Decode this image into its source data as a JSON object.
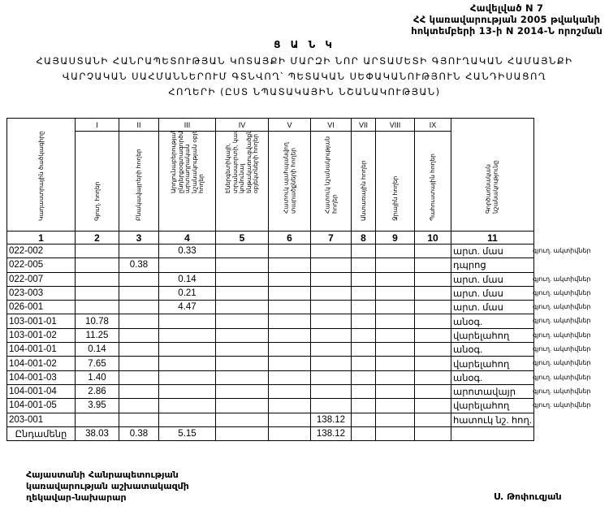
{
  "header": {
    "lines": [
      "Հավելված N 7",
      "ՀՀ կառավարության 2005 թվականի",
      "հոկտեմբերի 13-ի N 2014-Ն որոշման"
    ]
  },
  "title": {
    "main": "Ց Ա Ն Կ",
    "lines": [
      "ՀԱՅԱՍՏԱՆԻ ՀԱՆՐԱՊԵՏՈՒԹՅԱՆ ԿՈՏԱՅՔԻ ՄԱՐԶԻ ՆՈՐ ԱՐՏԱՄԵՏԻ ԳՅՈՒՂԱԿԱՆ ՀԱՄԱՅՆՔԻ",
      "ՎԱՐՉԱԿԱՆ ՍԱՀՄԱՆՆԵՐՈՒՄ ԳՏՆՎՈՂ՝ ՊԵՏԱԿԱՆ ՍԵՓԱԿԱՆՈՒԹՅՈՒՆ ՀԱՆԴԻՍԱՑՈՂ",
      "ՀՈՂԵՐԻ (ԸՍՏ ՆՊԱՏԱԿԱՅԻՆ ՆՇԱՆԱԿՈՒԹՅԱՆ)"
    ]
  },
  "table": {
    "roman": [
      "",
      "I",
      "II",
      "III",
      "IV",
      "V",
      "VI",
      "VII",
      "VIII",
      "IX",
      ""
    ],
    "headers": [
      "Կադաստրային ծածկագիրը",
      "Գյուղ. հողեր",
      "Բնակավայրերի հողեր",
      "Արդյունաբերության, ընդերքօգտագործման և այլ արտադրական նշանակության օբյեկտների հողեր",
      "Էներգետիկայի, տրանսպորտի, կապի, կոմունալ ենթակառուցվածքների օբյեկտների հողեր",
      "Հատուկ պահպանվող տարածքների հողեր",
      "Հատուկ նշանակության հողեր",
      "Անտառային հողեր",
      "Ջրային հողեր",
      "Պահուստային հողեր",
      "Գործառնական նշանակությունը"
    ],
    "numbers": [
      "1",
      "2",
      "3",
      "4",
      "5",
      "6",
      "7",
      "8",
      "9",
      "10",
      "11"
    ],
    "rows": [
      {
        "cells": [
          "022-002",
          "",
          "",
          "0.33",
          "",
          "",
          "",
          "",
          "",
          "",
          "արտ. մաս"
        ],
        "note": "գյուղ. ակտիվներ"
      },
      {
        "cells": [
          "022-005",
          "",
          "0.38",
          "",
          "",
          "",
          "",
          "",
          "",
          "",
          "դպրոց"
        ],
        "note": ""
      },
      {
        "cells": [
          "022-007",
          "",
          "",
          "0.14",
          "",
          "",
          "",
          "",
          "",
          "",
          "արտ. մաս"
        ],
        "note": "գյուղ. ակտիվներ"
      },
      {
        "cells": [
          "023-003",
          "",
          "",
          "0.21",
          "",
          "",
          "",
          "",
          "",
          "",
          "արտ. մաս"
        ],
        "note": "գյուղ. ակտիվներ"
      },
      {
        "cells": [
          "026-001",
          "",
          "",
          "4.47",
          "",
          "",
          "",
          "",
          "",
          "",
          "արտ. մաս"
        ],
        "note": "գյուղ. ակտիվներ"
      },
      {
        "cells": [
          "103-001-01",
          "10.78",
          "",
          "",
          "",
          "",
          "",
          "",
          "",
          "",
          "անօգ."
        ],
        "note": "գյուղ. ակտիվներ"
      },
      {
        "cells": [
          "103-001-02",
          "11.25",
          "",
          "",
          "",
          "",
          "",
          "",
          "",
          "",
          "վարելահող"
        ],
        "note": "գյուղ. ակտիվներ"
      },
      {
        "cells": [
          "104-001-01",
          "0.14",
          "",
          "",
          "",
          "",
          "",
          "",
          "",
          "",
          "անօգ."
        ],
        "note": "գյուղ. ակտիվներ"
      },
      {
        "cells": [
          "104-001-02",
          "7.65",
          "",
          "",
          "",
          "",
          "",
          "",
          "",
          "",
          "վարելահող"
        ],
        "note": "գյուղ. ակտիվներ"
      },
      {
        "cells": [
          "104-001-03",
          "1.40",
          "",
          "",
          "",
          "",
          "",
          "",
          "",
          "",
          "անօգ."
        ],
        "note": "գյուղ. ակտիվներ"
      },
      {
        "cells": [
          "104-001-04",
          "2.86",
          "",
          "",
          "",
          "",
          "",
          "",
          "",
          "",
          "արոտավայր"
        ],
        "note": "գյուղ. ակտիվներ"
      },
      {
        "cells": [
          "104-001-05",
          "3.95",
          "",
          "",
          "",
          "",
          "",
          "",
          "",
          "",
          "վարելահող"
        ],
        "note": "գյուղ. ակտիվներ"
      },
      {
        "cells": [
          "203-001",
          "",
          "",
          "",
          "",
          "",
          "138.12",
          "",
          "",
          "",
          "հատուկ նշ. հող."
        ],
        "note": ""
      }
    ],
    "total": [
      "Ընդամենը",
      "38.03",
      "0.38",
      "5.15",
      "",
      "",
      "138.12",
      "",
      "",
      "",
      ""
    ]
  },
  "footer": {
    "position_lines": [
      "Հայաստանի Հանրապետության",
      "կառավարության աշխատակազմի",
      "ղեկավար-նախարար"
    ],
    "signatory": "Ս. Թոփուզյան"
  }
}
